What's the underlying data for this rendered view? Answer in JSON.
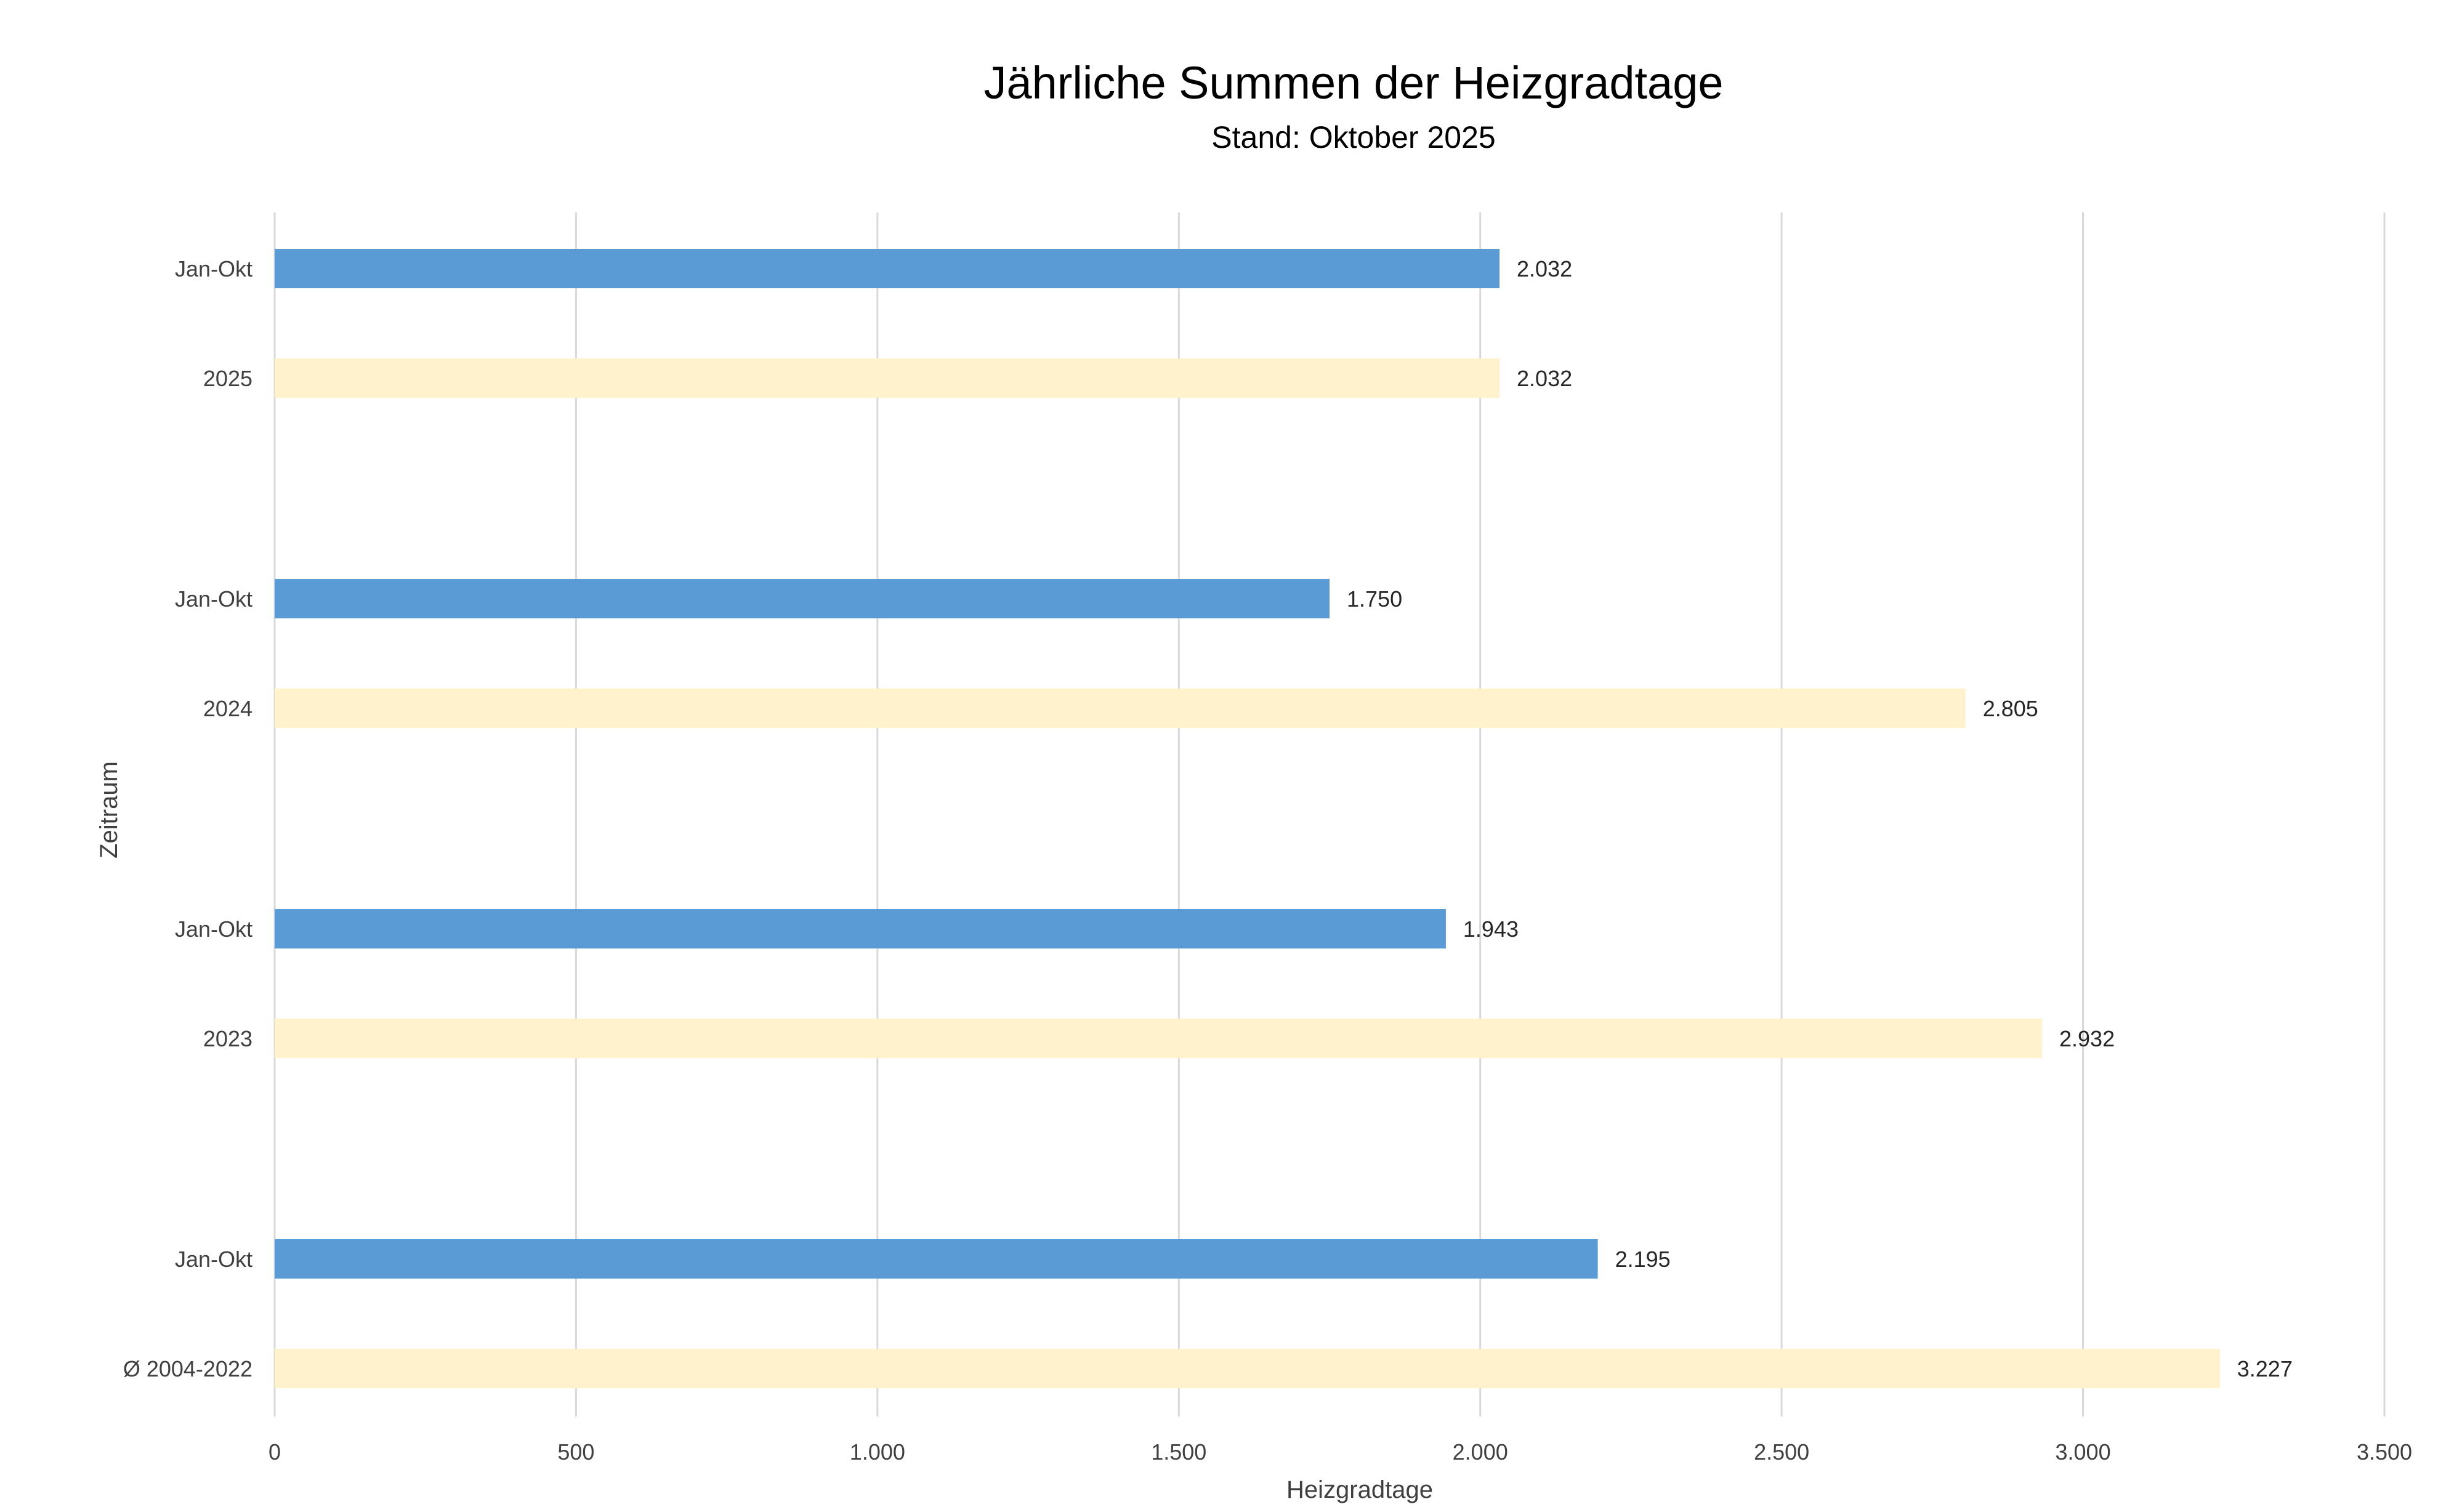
{
  "chart_data": {
    "type": "bar",
    "orientation": "horizontal",
    "title": "Jährliche Summen der Heizgradtage",
    "subtitle": "Stand: Oktober 2025",
    "xlabel": "Heizgradtage",
    "ylabel": "Zeitraum",
    "xlim": [
      0,
      3500
    ],
    "xticks": [
      0,
      500,
      1000,
      1500,
      2000,
      2500,
      3000,
      3500
    ],
    "xtick_labels": [
      "0",
      "500",
      "1.000",
      "1.500",
      "2.000",
      "2.500",
      "3.000",
      "3.500"
    ],
    "grid": "vertical",
    "legend": "none",
    "colors": {
      "jan_okt": "#5b9bd5",
      "full_year": "#fff2cc",
      "grid": "#d9d9d9"
    },
    "groups": [
      {
        "bars": [
          {
            "category": "Jan-Okt",
            "value": 2032,
            "label": "2.032",
            "series": "jan_okt"
          },
          {
            "category": "2025",
            "value": 2032,
            "label": "2.032",
            "series": "full_year"
          }
        ]
      },
      {
        "bars": [
          {
            "category": "Jan-Okt",
            "value": 1750,
            "label": "1.750",
            "series": "jan_okt"
          },
          {
            "category": "2024",
            "value": 2805,
            "label": "2.805",
            "series": "full_year"
          }
        ]
      },
      {
        "bars": [
          {
            "category": "Jan-Okt",
            "value": 1943,
            "label": "1.943",
            "series": "jan_okt"
          },
          {
            "category": "2023",
            "value": 2932,
            "label": "2.932",
            "series": "full_year"
          }
        ]
      },
      {
        "bars": [
          {
            "category": "Jan-Okt",
            "value": 2195,
            "label": "2.195",
            "series": "jan_okt"
          },
          {
            "category": "Ø 2004-2022",
            "value": 3227,
            "label": "3.227",
            "series": "full_year"
          }
        ]
      }
    ]
  }
}
